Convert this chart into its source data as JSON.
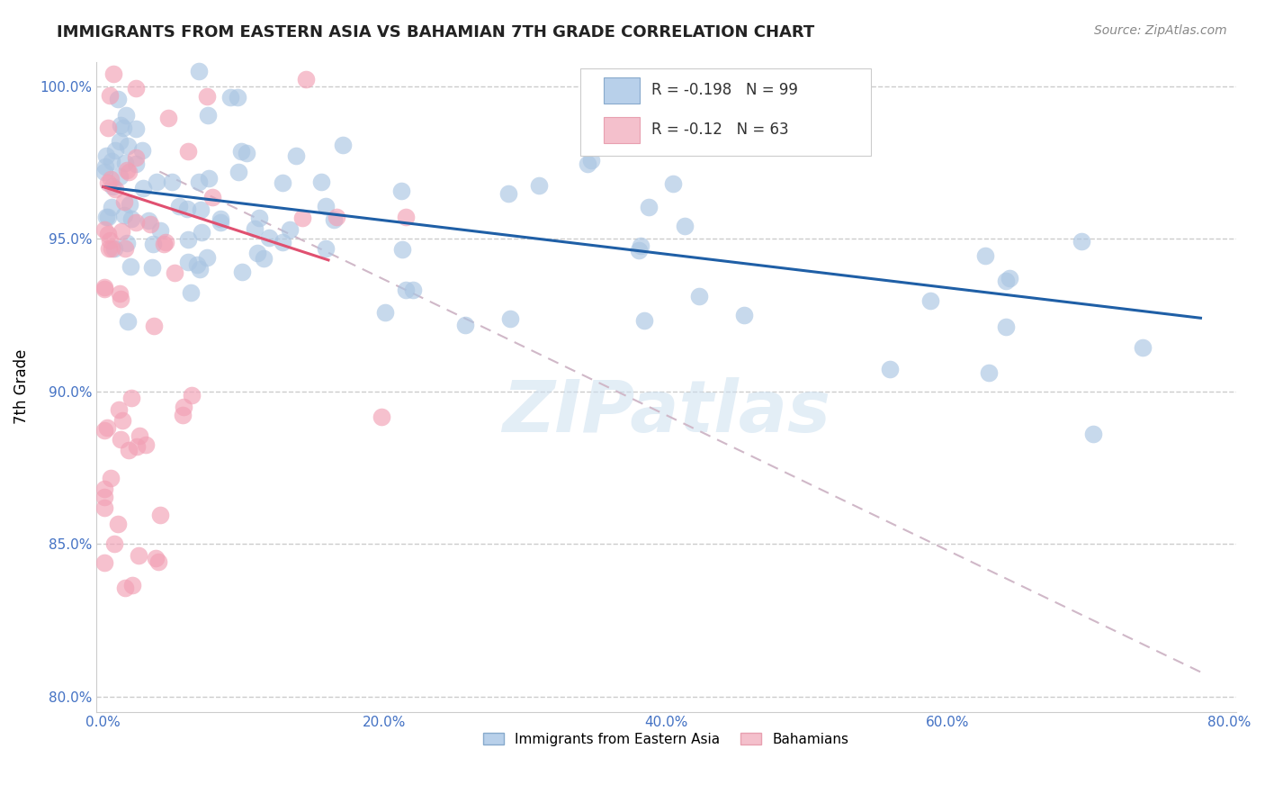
{
  "title": "IMMIGRANTS FROM EASTERN ASIA VS BAHAMIAN 7TH GRADE CORRELATION CHART",
  "source": "Source: ZipAtlas.com",
  "ylabel": "7th Grade",
  "xlim": [
    -0.005,
    0.805
  ],
  "ylim": [
    0.795,
    1.008
  ],
  "xtick_vals": [
    0.0,
    0.1,
    0.2,
    0.3,
    0.4,
    0.5,
    0.6,
    0.7,
    0.8
  ],
  "xtick_labels": [
    "0.0%",
    "",
    "20.0%",
    "",
    "40.0%",
    "",
    "60.0%",
    "",
    "80.0%"
  ],
  "ytick_vals": [
    0.8,
    0.85,
    0.9,
    0.95,
    1.0
  ],
  "ytick_labels": [
    "80.0%",
    "85.0%",
    "90.0%",
    "95.0%",
    "100.0%"
  ],
  "blue_R": -0.198,
  "blue_N": 99,
  "pink_R": -0.12,
  "pink_N": 63,
  "blue_color": "#aac5e2",
  "pink_color": "#f2a0b5",
  "blue_line_color": "#1f5fa6",
  "pink_line_color": "#e05070",
  "gray_line_color": "#d0b8c8",
  "watermark": "ZIPatlas",
  "legend_label_blue": "Immigrants from Eastern Asia",
  "legend_label_pink": "Bahamians",
  "blue_trend_x": [
    0.0,
    0.78
  ],
  "blue_trend_y": [
    0.967,
    0.924
  ],
  "pink_trend_x": [
    0.0,
    0.16
  ],
  "pink_trend_y": [
    0.967,
    0.943
  ],
  "gray_trend_x": [
    0.04,
    0.78
  ],
  "gray_trend_y": [
    0.972,
    0.808
  ]
}
